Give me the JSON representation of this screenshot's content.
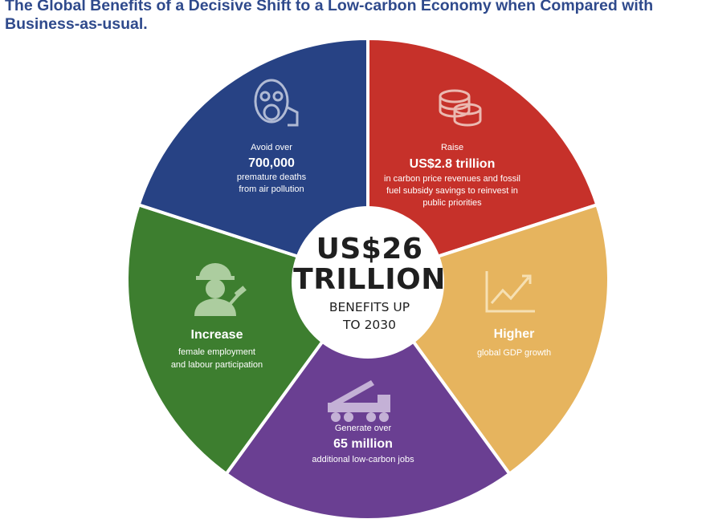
{
  "title_line1": "The Global Benefits of a Decisive Shift to a Low-carbon Economy when Compared with",
  "title_line2": "Business-as-usual.",
  "center": {
    "line1": "US$26",
    "line2": "TRILLION",
    "line3": "BENEFITS UP",
    "line4": "TO 2030"
  },
  "segments": [
    {
      "key": "air",
      "color": "#274284",
      "icon": "gas-mask-icon",
      "lines": [
        "Avoid over",
        "700,000",
        "premature deaths",
        "from air pollution"
      ]
    },
    {
      "key": "revenue",
      "color": "#c6312a",
      "icon": "coins-icon",
      "lines": [
        "Raise",
        "US$2.8 trillion",
        "in carbon price revenues and fossil",
        "fuel subsidy savings to reinvest in",
        "public priorities"
      ]
    },
    {
      "key": "gdp",
      "color": "#e6b45e",
      "icon": "growth-chart-icon",
      "lines": [
        "Higher",
        "global GDP growth"
      ]
    },
    {
      "key": "jobs",
      "color": "#6a3f92",
      "icon": "crane-truck-icon",
      "lines": [
        "Generate over",
        "65 million",
        "additional low-carbon jobs"
      ]
    },
    {
      "key": "employment",
      "color": "#3d7e2f",
      "icon": "female-worker-icon",
      "lines": [
        "Increase",
        "female employment",
        "and labour participation"
      ]
    }
  ]
}
